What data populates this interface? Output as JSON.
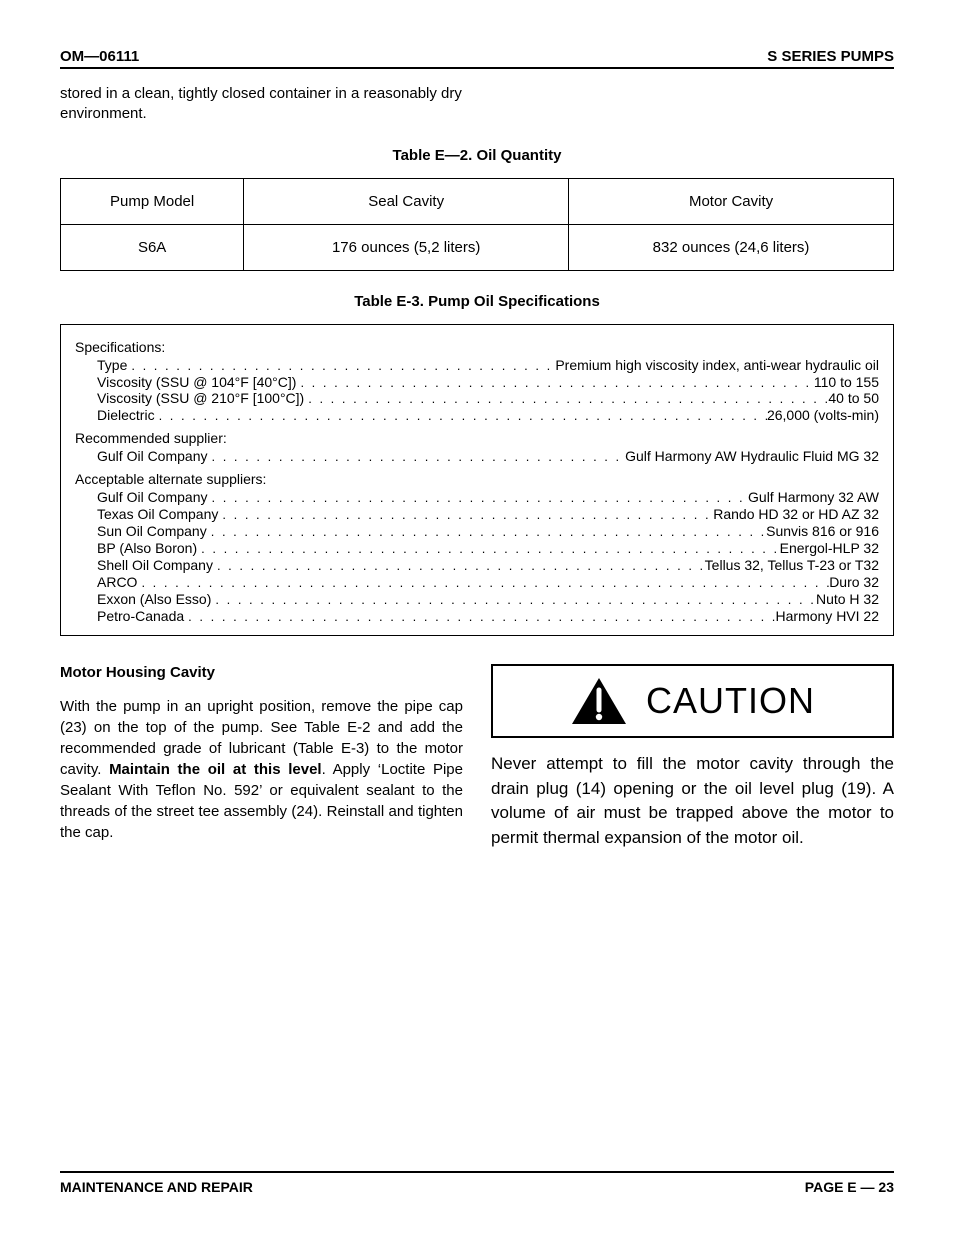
{
  "header": {
    "left": "OM—06111",
    "right": "S SERIES PUMPS"
  },
  "intro": "stored in a clean, tightly closed container in a reasonably dry environment.",
  "table_e2": {
    "title": "Table E—2.  Oil Quantity",
    "headers": [
      "Pump Model",
      "Seal Cavity",
      "Motor Cavity"
    ],
    "row": [
      "S6A",
      "176 ounces (5,2 liters)",
      "832 ounces (24,6 liters)"
    ],
    "col_widths": [
      "22%",
      "39%",
      "39%"
    ]
  },
  "table_e3": {
    "title": "Table E-3.  Pump Oil Specifications",
    "sections": [
      {
        "label": "Specifications:",
        "rows": [
          {
            "l": "Type",
            "v": "Premium high viscosity index, anti-wear hydraulic oil"
          },
          {
            "l": "Viscosity (SSU @ 104°F [40°C])",
            "v": "110 to 155"
          },
          {
            "l": "Viscosity (SSU @ 210°F [100°C])",
            "v": "40 to 50"
          },
          {
            "l": "Dielectric",
            "v": "26,000 (volts-min)"
          }
        ]
      },
      {
        "label": "Recommended supplier:",
        "rows": [
          {
            "l": "Gulf Oil Company",
            "v": "Gulf Harmony AW Hydraulic Fluid MG 32"
          }
        ]
      },
      {
        "label": "Acceptable alternate suppliers:",
        "rows": [
          {
            "l": "Gulf Oil Company",
            "v": "Gulf Harmony 32 AW"
          },
          {
            "l": "Texas Oil Company",
            "v": "Rando HD 32 or HD AZ 32"
          },
          {
            "l": "Sun Oil Company",
            "v": "Sunvis 816 or 916"
          },
          {
            "l": "BP (Also Boron)",
            "v": "Energol-HLP 32"
          },
          {
            "l": "Shell Oil Company",
            "v": "Tellus 32, Tellus T-23 or T32"
          },
          {
            "l": "ARCO",
            "v": "Duro 32"
          },
          {
            "l": "Exxon (Also Esso)",
            "v": "Nuto H 32"
          },
          {
            "l": "Petro-Canada",
            "v": "Harmony HVI 22"
          }
        ]
      }
    ]
  },
  "left_col": {
    "heading": "Motor Housing Cavity",
    "para_pre": "With the pump in an upright position, remove the pipe cap (23) on the top of the pump. See Table E-2 and add the recommended grade of lubricant (Table E-3) to the motor cavity. ",
    "para_bold": "Maintain the oil at this level",
    "para_post": ". Apply ‘Loctite Pipe Sealant With Teflon No. 592’ or equivalent sealant to the threads of the street tee assembly (24). Reinstall and tighten the cap."
  },
  "caution": {
    "label": "CAUTION",
    "text": "Never attempt to fill the motor cavity through the drain plug (14) opening or the oil level plug (19). A volume of air must be trapped above the motor to permit thermal expansion of the motor oil."
  },
  "footer": {
    "left": "MAINTENANCE AND REPAIR",
    "right": "PAGE E — 23"
  },
  "colors": {
    "text": "#000000",
    "bg": "#ffffff",
    "rule": "#000000"
  }
}
